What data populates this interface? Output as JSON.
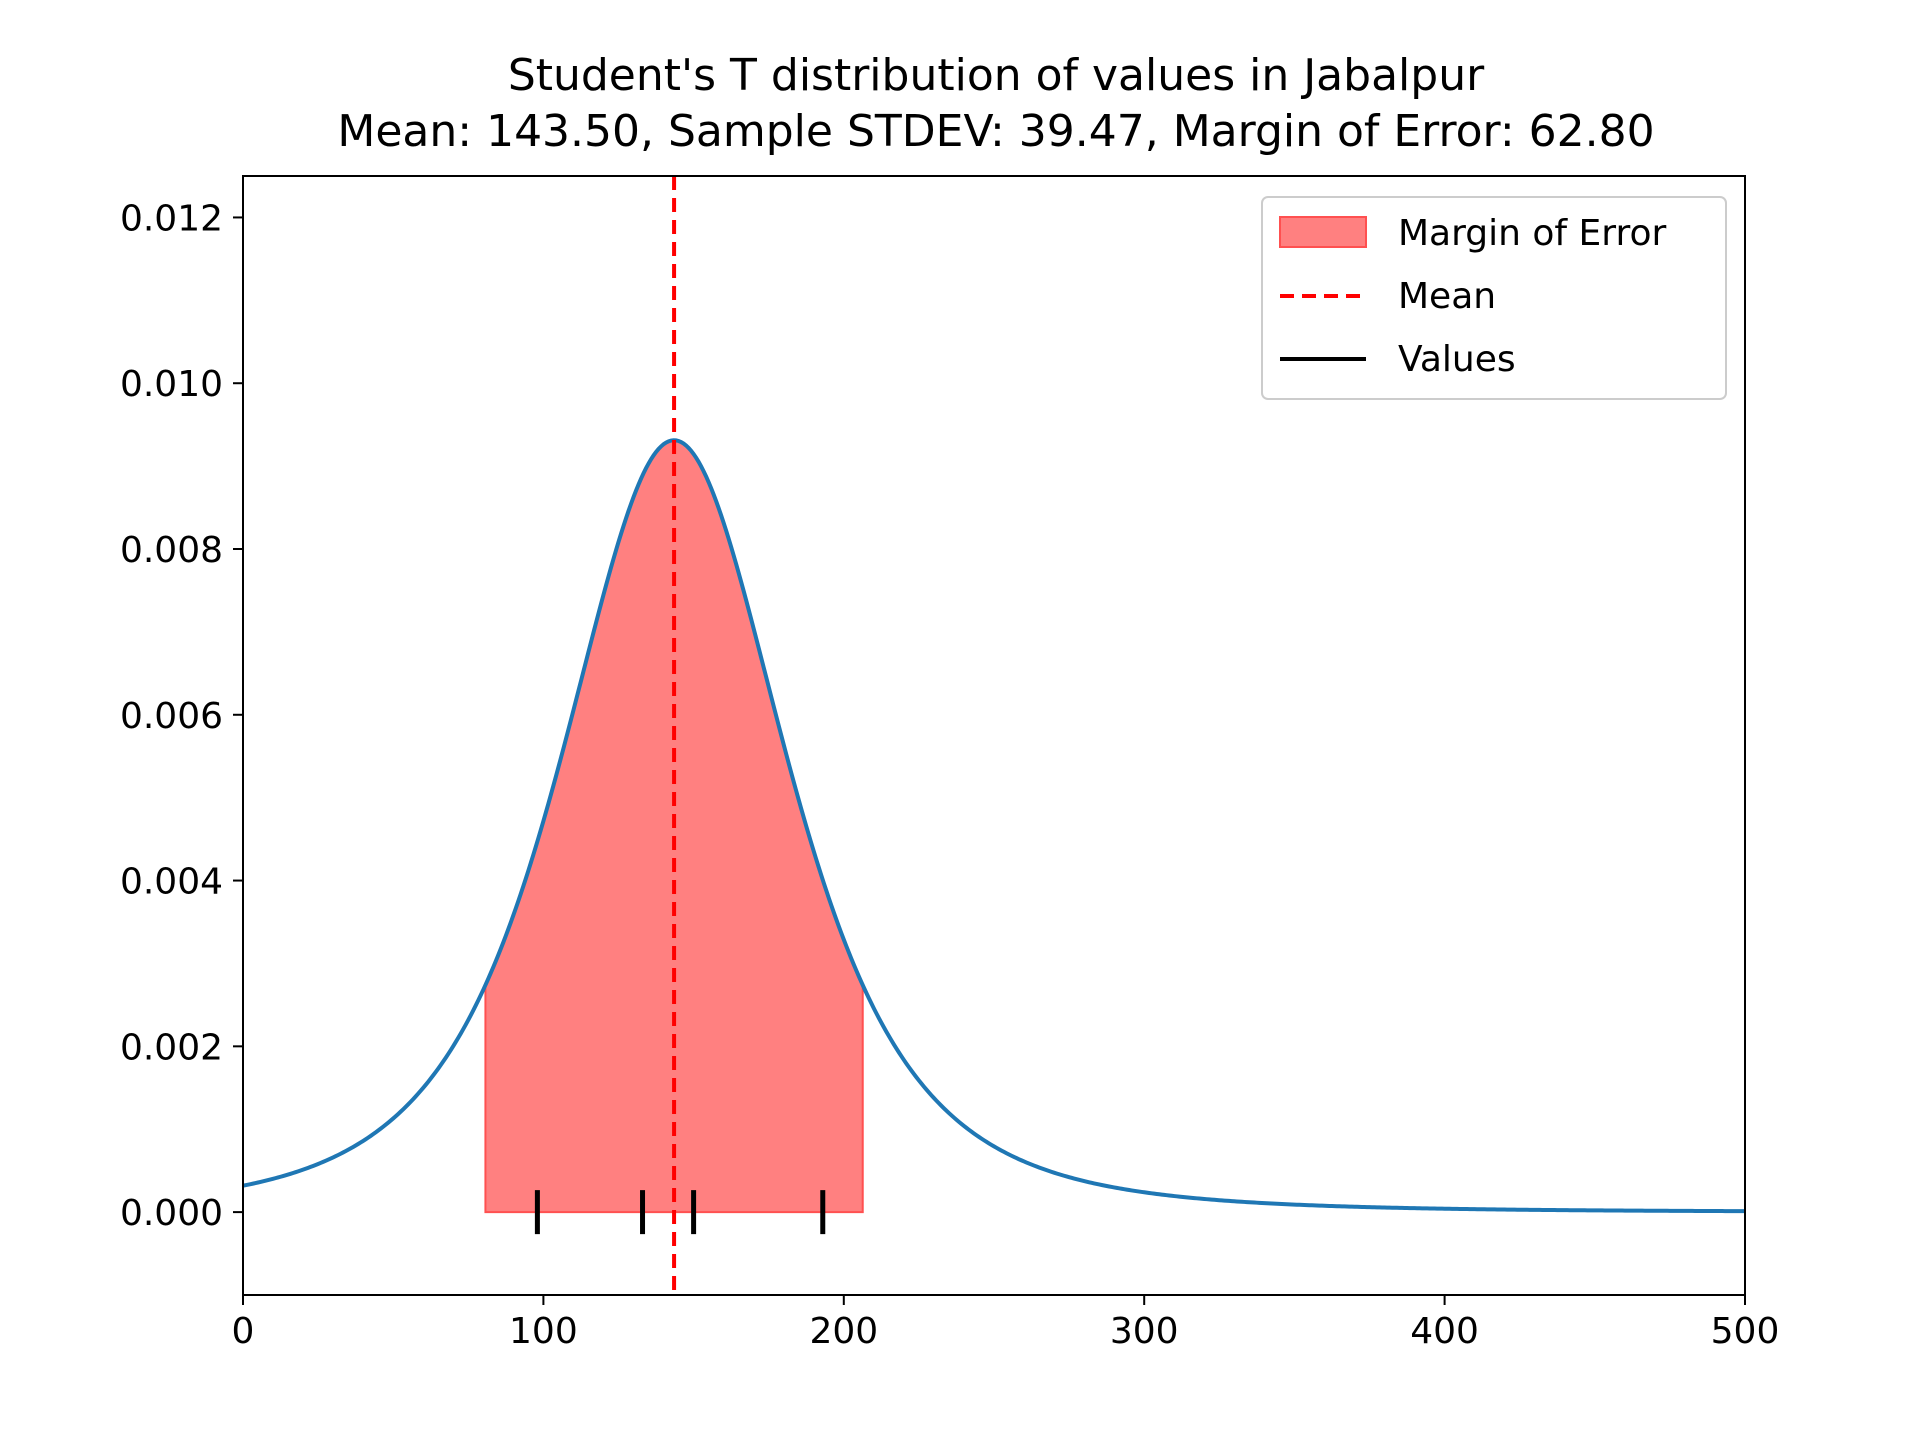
{
  "chart_data": {
    "type": "line",
    "title": "Student's T distribution of values in Jabalpur",
    "subtitle": "Mean: 143.50, Sample STDEV: 39.47, Margin of Error: 62.80",
    "xlabel": "",
    "ylabel": "",
    "xlim": [
      0,
      500
    ],
    "ylim": [
      -0.001,
      0.0125
    ],
    "xticks": [
      0,
      100,
      200,
      300,
      400,
      500
    ],
    "xtick_labels": [
      "0",
      "100",
      "200",
      "300",
      "400",
      "500"
    ],
    "yticks": [
      0.0,
      0.002,
      0.004,
      0.006,
      0.008,
      0.01,
      0.012
    ],
    "ytick_labels": [
      "0.000",
      "0.002",
      "0.004",
      "0.006",
      "0.008",
      "0.010",
      "0.012"
    ],
    "grid": false,
    "legend_position": "top-right",
    "legend": [
      {
        "label": "Margin of Error",
        "kind": "patch",
        "color": "#ff8080"
      },
      {
        "label": "Mean",
        "kind": "dashed-line",
        "color": "#ff0000"
      },
      {
        "label": "Values",
        "kind": "line",
        "color": "#000000"
      }
    ],
    "distribution": {
      "name": "Student's T",
      "mean": 143.5,
      "scale": 39.47,
      "degrees_of_freedom": 3,
      "color": "#1f77b4",
      "x_range": [
        0,
        500
      ]
    },
    "mean_line": {
      "x": 143.5,
      "color": "#ff0000"
    },
    "margin_of_error": {
      "low": 80.7,
      "high": 206.3,
      "color": "#ff8080"
    },
    "values": [
      98,
      133,
      150,
      193
    ],
    "value_color": "#000000"
  }
}
